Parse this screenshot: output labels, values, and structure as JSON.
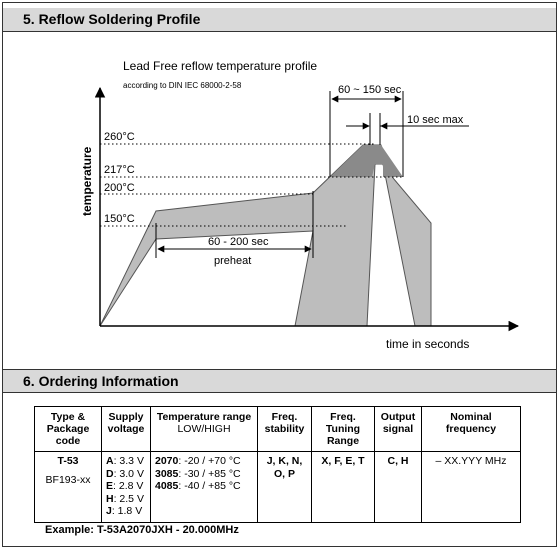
{
  "sections": {
    "reflow_title": "5. Reflow Soldering Profile",
    "ordering_title": "6. Ordering Information"
  },
  "diagram": {
    "title": "Lead Free reflow temperature profile",
    "subtitle": "according to DIN IEC 68000-2-58",
    "y_axis_label": "temperature",
    "x_axis_label": "time in seconds",
    "temps": [
      "260°C",
      "217°C",
      "200°C",
      "150°C"
    ],
    "window_label": "60 ~ 150 sec",
    "peak_label": "10 sec max",
    "preheat_time": "60 - 200 sec",
    "preheat_label": "preheat"
  },
  "table": {
    "headers": [
      {
        "lines": [
          "Type &",
          "Package",
          "code"
        ],
        "sub": ""
      },
      {
        "lines": [
          "Supply",
          "voltage"
        ],
        "sub": ""
      },
      {
        "lines": [
          "Temperature range"
        ],
        "sub": "LOW/HIGH"
      },
      {
        "lines": [
          "Freq.",
          "stability"
        ],
        "sub": ""
      },
      {
        "lines": [
          "Freq.",
          "Tuning",
          "Range"
        ],
        "sub": ""
      },
      {
        "lines": [
          "Output",
          "signal"
        ],
        "sub": ""
      },
      {
        "lines": [
          "Nominal",
          "frequency"
        ],
        "sub": ""
      }
    ],
    "type_code": "T-53",
    "package_code": "BF193-xx",
    "voltages": [
      {
        "code": "A",
        "value": ": 3.3 V"
      },
      {
        "code": "D",
        "value": ": 3.0 V"
      },
      {
        "code": "E",
        "value": ": 2.8 V"
      },
      {
        "code": "H",
        "value": ": 2.5 V"
      },
      {
        "code": "J",
        "value": ": 1.8 V"
      }
    ],
    "temp_ranges": [
      {
        "code": "2070",
        "value": ": -20 / +70 °C"
      },
      {
        "code": "3085",
        "value": ": -30 / +85 °C"
      },
      {
        "code": "4085",
        "value": ": -40 / +85 °C"
      }
    ],
    "stability_line1": "J, K, N,",
    "stability_line2": "O, P",
    "tuning": "X, F, E, T",
    "output": "C, H",
    "frequency": "– XX.YYY MHz"
  },
  "example": "Example: T-53A2070JXH - 20.000MHz"
}
